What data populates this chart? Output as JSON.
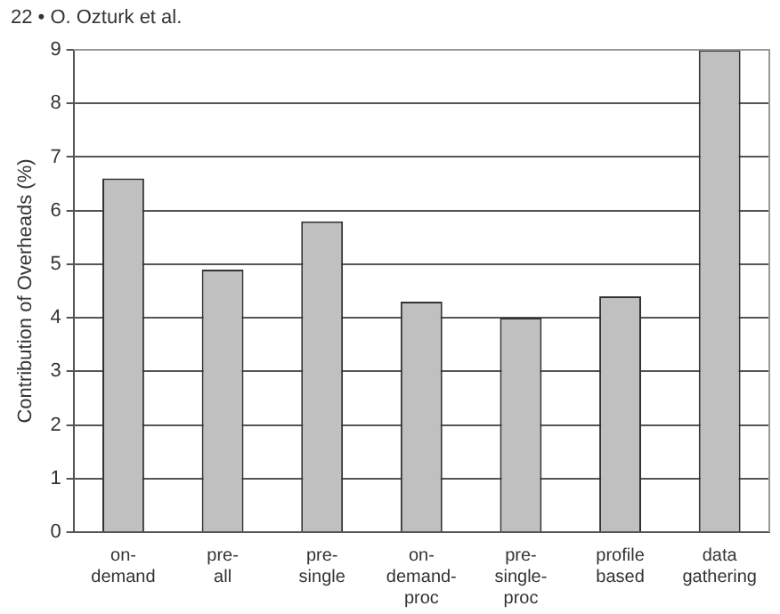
{
  "chart_data": {
    "type": "bar",
    "ylabel": "Contribution of Overheads (%)",
    "categories": [
      "on-demand",
      "pre-all",
      "pre-single",
      "on-demand-proc",
      "pre-single-proc",
      "profile based",
      "data gathering"
    ],
    "values": [
      6.6,
      4.9,
      5.8,
      4.3,
      4.0,
      4.4,
      9.0
    ],
    "color": "#c0c0c0",
    "ylim": [
      0,
      9
    ],
    "yticks": [
      0,
      1,
      2,
      3,
      4,
      5,
      6,
      7,
      8,
      9
    ],
    "grid": "y",
    "annotations": [
      "22 • O. Ozturk et al."
    ]
  }
}
